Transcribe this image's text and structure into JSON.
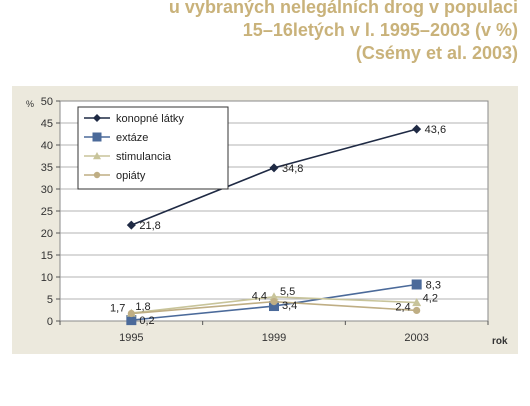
{
  "title_lines": [
    "u vybraných nelegálních drog v populaci",
    "15–16letých v l. 1995–2003 (v %)",
    "(Csémy et al. 2003)"
  ],
  "chart_data": {
    "type": "line",
    "x": [
      "1995",
      "1999",
      "2003"
    ],
    "xlabel": "rok",
    "ylabel": "%",
    "ylim": [
      0,
      50
    ],
    "yticks": [
      0,
      5,
      10,
      15,
      20,
      25,
      30,
      35,
      40,
      45,
      50
    ],
    "grid": true,
    "legend_position": "top-left",
    "series": [
      {
        "name": "konopné látky",
        "values": [
          21.8,
          34.8,
          43.6
        ],
        "labels": [
          "21,8",
          "34,8",
          "43,6"
        ],
        "color": "#1f2a44",
        "marker": "diamond"
      },
      {
        "name": "extáze",
        "values": [
          0.2,
          3.4,
          8.3
        ],
        "labels": [
          "0,2",
          "3,4",
          "8,3"
        ],
        "color": "#4b6a9a",
        "marker": "square"
      },
      {
        "name": "stimulancia",
        "values": [
          1.8,
          5.5,
          4.2
        ],
        "labels": [
          "1,8",
          "5,5",
          "4,2"
        ],
        "color": "#c8c49a",
        "marker": "triangle"
      },
      {
        "name": "opiáty",
        "values": [
          1.7,
          4.4,
          2.4
        ],
        "labels": [
          "1,7",
          "4,4",
          "2,4"
        ],
        "color": "#bfae84",
        "marker": "circle"
      }
    ]
  }
}
